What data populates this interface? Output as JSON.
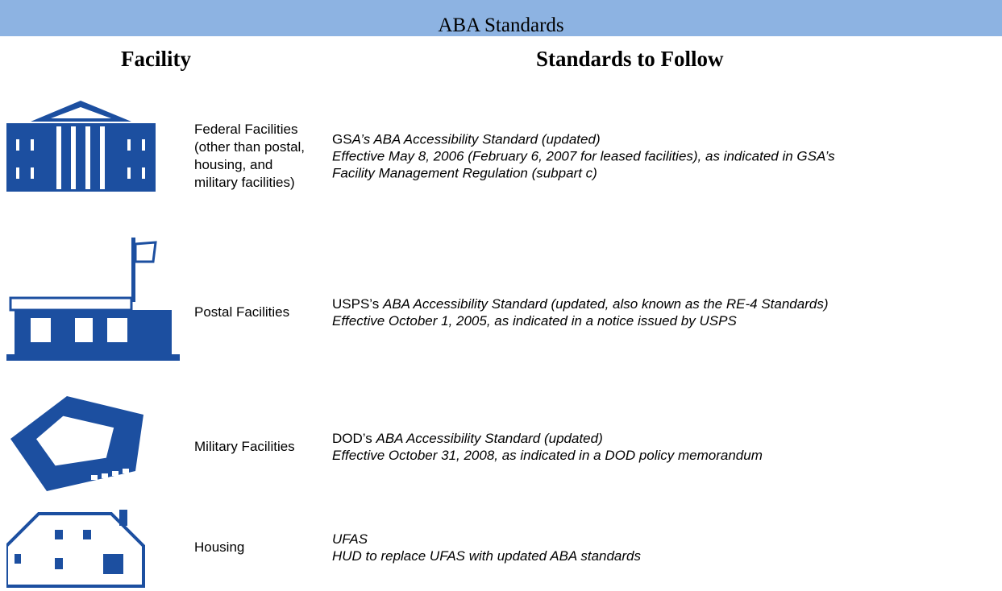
{
  "header": {
    "title": "ABA Standards"
  },
  "table": {
    "columns": [
      "Facility",
      "Standards to Follow"
    ],
    "rows": [
      {
        "facility": "Federal Facilities (other than postal, housing, and military facilities)",
        "standard": [
          [
            {
              "text": "GS",
              "italic": false
            },
            {
              "text": "A’s ABA Accessibility Standard (updated)",
              "italic": true
            }
          ],
          [
            {
              "text": "Effective May 8, 2006 (February 6, 2007 for leased facilities), as indicated in GSA’s",
              "italic": true
            }
          ],
          [
            {
              "text": "Facility Management Regulation (subpart c)",
              "italic": true
            }
          ]
        ]
      },
      {
        "facility": "Postal Facilities",
        "standard": [
          [
            {
              "text": "USPS’s ",
              "italic": false
            },
            {
              "text": "ABA Accessibility Standard (updated, also known as the RE-4 Standards)",
              "italic": true
            }
          ],
          [
            {
              "text": "Effective October 1, 2005, as indicated in a notice issued by USPS",
              "italic": true
            }
          ]
        ]
      },
      {
        "facility": "Military Facilities",
        "standard": [
          [
            {
              "text": "DOD’s ",
              "italic": false
            },
            {
              "text": "ABA Accessibility Standard (updated)",
              "italic": true
            }
          ],
          [
            {
              "text": "Effective October 31, 2008, as indicated in a DOD policy memorandum",
              "italic": true
            }
          ]
        ]
      },
      {
        "facility": "Housing",
        "standard": [
          [
            {
              "text": "UFAS",
              "italic": true
            }
          ],
          [
            {
              "text": "HUD to replace UFAS with updated ABA standards",
              "italic": true
            }
          ]
        ]
      }
    ]
  }
}
